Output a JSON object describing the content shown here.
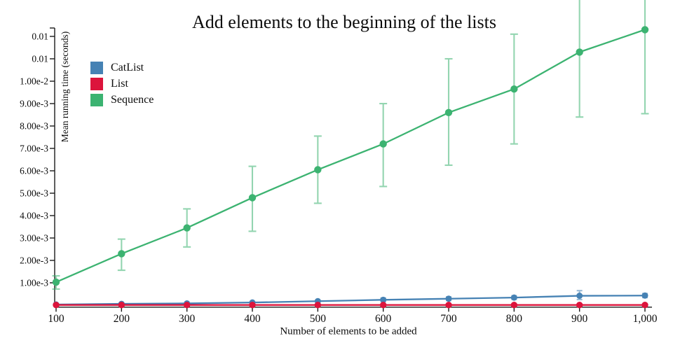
{
  "chart_data": {
    "type": "line",
    "title": "Add elements to the beginning of the lists",
    "xlabel": "Number of elements to be added",
    "ylabel": "Mean running time (seconds)",
    "grid": false,
    "legend_position": "top-left-inside",
    "xlim": [
      100,
      1000
    ],
    "ylim": [
      0,
      0.0125
    ],
    "x": [
      100,
      200,
      300,
      400,
      500,
      600,
      700,
      800,
      900,
      1000
    ],
    "x_tick_labels": [
      "100",
      "200",
      "300",
      "400",
      "500",
      "600",
      "700",
      "800",
      "900",
      "1,000"
    ],
    "y_ticks": [
      {
        "label": "0.01",
        "value": 0.012
      },
      {
        "label": "0.01",
        "value": 0.011
      },
      {
        "label": "1.00e-2",
        "value": 0.01
      },
      {
        "label": "9.00e-3",
        "value": 0.009
      },
      {
        "label": "8.00e-3",
        "value": 0.008
      },
      {
        "label": "7.00e-3",
        "value": 0.007
      },
      {
        "label": "6.00e-3",
        "value": 0.006
      },
      {
        "label": "5.00e-3",
        "value": 0.005
      },
      {
        "label": "4.00e-3",
        "value": 0.004
      },
      {
        "label": "3.00e-3",
        "value": 0.003
      },
      {
        "label": "2.00e-3",
        "value": 0.002
      },
      {
        "label": "1.00e-3",
        "value": 0.001
      }
    ],
    "series": [
      {
        "name": "Sequence",
        "color": "#3CB371",
        "values": [
          0.00103,
          0.0023,
          0.00345,
          0.0048,
          0.00605,
          0.0072,
          0.0086,
          0.00965,
          0.0113,
          0.0123
        ],
        "err_lo": [
          0.00072,
          0.00156,
          0.0026,
          0.0033,
          0.00455,
          0.0053,
          0.00625,
          0.0072,
          0.0084,
          0.00855
        ],
        "err_hi": [
          0.00131,
          0.00295,
          0.0043,
          0.0062,
          0.00755,
          0.009,
          0.011,
          0.0121,
          null,
          null
        ],
        "err_hi_clipped": [
          false,
          false,
          false,
          false,
          false,
          false,
          false,
          false,
          true,
          true
        ]
      },
      {
        "name": "CatList",
        "color": "#4682B4",
        "values": [
          3e-05,
          6e-05,
          8e-05,
          0.00012,
          0.00018,
          0.00024,
          0.00029,
          0.00034,
          0.00042,
          0.00043
        ],
        "err_lo": [
          null,
          null,
          null,
          null,
          null,
          0.00016,
          0.00021,
          0.00026,
          0.00025,
          0.00034
        ],
        "err_hi": [
          null,
          null,
          null,
          null,
          null,
          0.00032,
          0.00037,
          0.00042,
          0.00065,
          0.00052
        ],
        "err_hi_clipped": [
          false,
          false,
          false,
          false,
          false,
          false,
          false,
          false,
          false,
          false
        ]
      },
      {
        "name": "List",
        "color": "#DC143C",
        "values": [
          1e-05,
          1e-05,
          1e-05,
          1e-05,
          1e-05,
          1e-05,
          1e-05,
          1e-05,
          1e-05,
          1e-05
        ],
        "err_lo": [
          null,
          null,
          null,
          null,
          null,
          null,
          null,
          null,
          null,
          null
        ],
        "err_hi": [
          null,
          null,
          null,
          null,
          null,
          null,
          null,
          null,
          null,
          null
        ],
        "err_hi_clipped": [
          false,
          false,
          false,
          false,
          false,
          false,
          false,
          false,
          false,
          false
        ]
      }
    ],
    "legend_order": [
      "CatList",
      "List",
      "Sequence"
    ]
  }
}
